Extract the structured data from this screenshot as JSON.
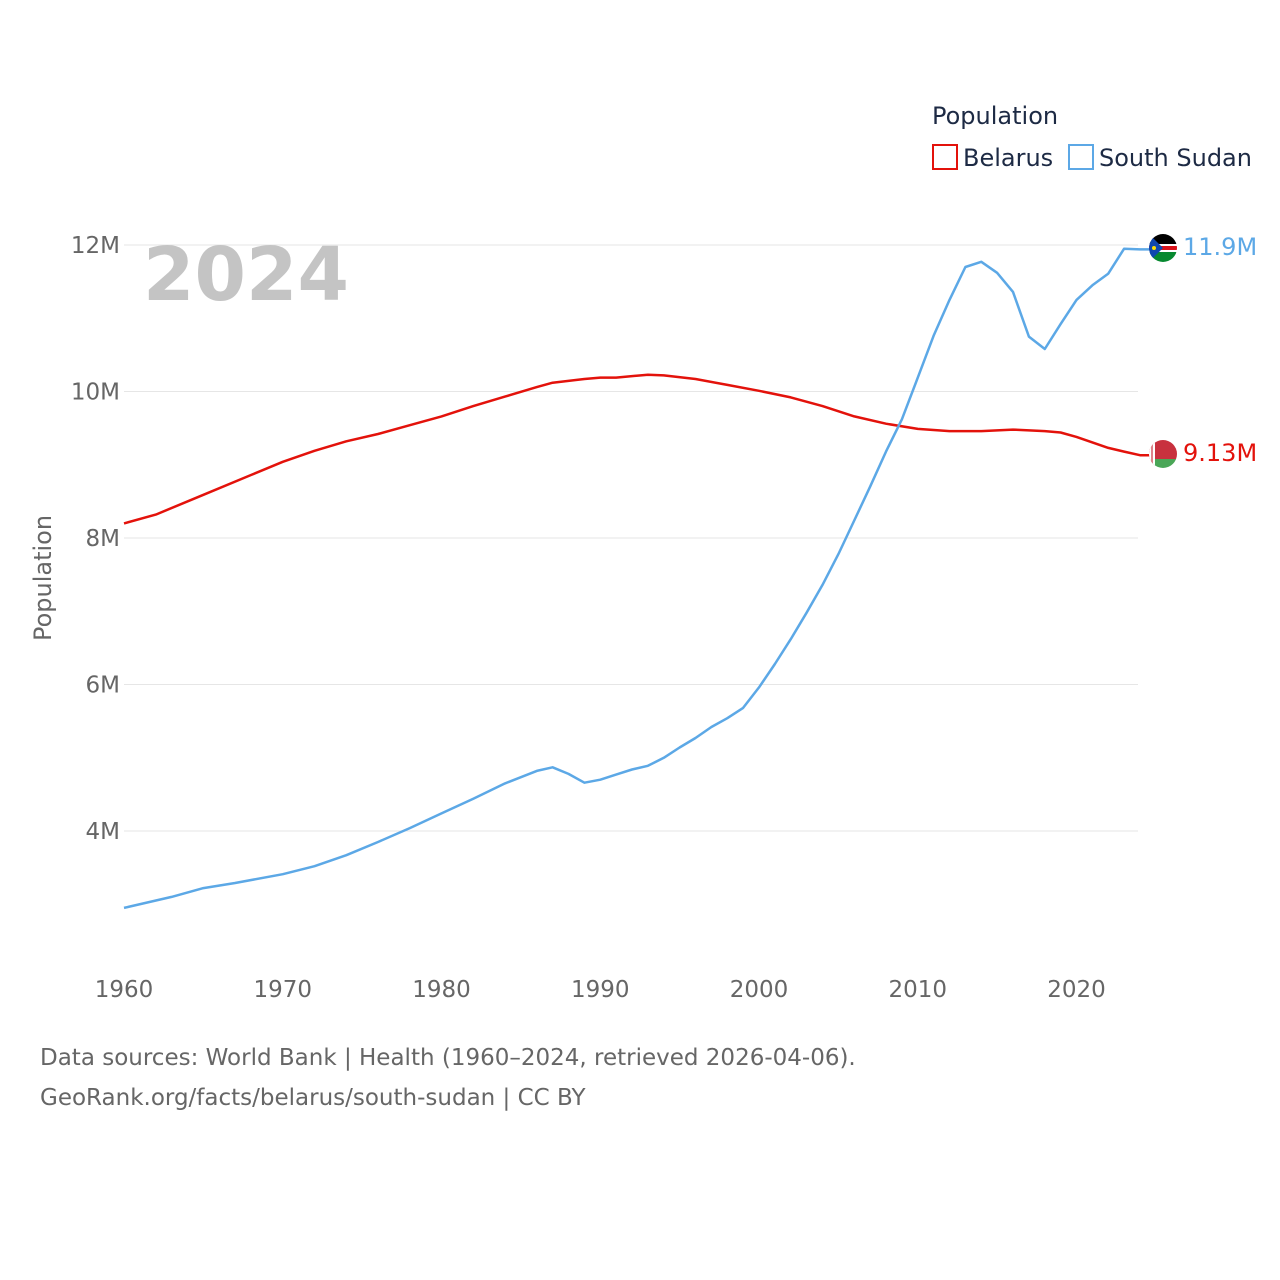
{
  "chart_data": {
    "type": "line",
    "title": "Population",
    "year_label": "2024",
    "ylabel": "Population",
    "xlim": [
      1960,
      2024
    ],
    "ylim": [
      2300000,
      12300000
    ],
    "x_ticks": [
      1960,
      1970,
      1980,
      1990,
      2000,
      2010,
      2020
    ],
    "x_tick_labels": [
      "1960",
      "1970",
      "1980",
      "1990",
      "2000",
      "2010",
      "2020"
    ],
    "y_ticks": [
      4000000,
      6000000,
      8000000,
      10000000,
      12000000
    ],
    "y_tick_labels": [
      "4M",
      "6M",
      "8M",
      "10M",
      "12M"
    ],
    "legend_title": "Population",
    "series": [
      {
        "name": "Belarus",
        "color": "#e3120b",
        "end_label": "9.13M",
        "flag_icon": "belarus-flag-icon",
        "points": [
          [
            1960,
            8200000
          ],
          [
            1962,
            8320000
          ],
          [
            1965,
            8590000
          ],
          [
            1968,
            8860000
          ],
          [
            1970,
            9040000
          ],
          [
            1972,
            9190000
          ],
          [
            1974,
            9320000
          ],
          [
            1976,
            9420000
          ],
          [
            1978,
            9540000
          ],
          [
            1980,
            9660000
          ],
          [
            1982,
            9800000
          ],
          [
            1984,
            9930000
          ],
          [
            1986,
            10060000
          ],
          [
            1987,
            10120000
          ],
          [
            1989,
            10170000
          ],
          [
            1990,
            10190000
          ],
          [
            1991,
            10190000
          ],
          [
            1993,
            10230000
          ],
          [
            1994,
            10220000
          ],
          [
            1996,
            10170000
          ],
          [
            1998,
            10090000
          ],
          [
            2000,
            10010000
          ],
          [
            2002,
            9920000
          ],
          [
            2004,
            9800000
          ],
          [
            2006,
            9660000
          ],
          [
            2008,
            9560000
          ],
          [
            2010,
            9490000
          ],
          [
            2012,
            9460000
          ],
          [
            2014,
            9460000
          ],
          [
            2016,
            9480000
          ],
          [
            2018,
            9460000
          ],
          [
            2019,
            9440000
          ],
          [
            2020,
            9380000
          ],
          [
            2022,
            9230000
          ],
          [
            2023,
            9180000
          ],
          [
            2024,
            9130000
          ]
        ]
      },
      {
        "name": "South Sudan",
        "color": "#5ca8e6",
        "end_label": "11.9M",
        "flag_icon": "south-sudan-flag-icon",
        "points": [
          [
            1960,
            2950000
          ],
          [
            1963,
            3100000
          ],
          [
            1965,
            3220000
          ],
          [
            1967,
            3290000
          ],
          [
            1970,
            3410000
          ],
          [
            1972,
            3520000
          ],
          [
            1974,
            3670000
          ],
          [
            1976,
            3850000
          ],
          [
            1978,
            4040000
          ],
          [
            1980,
            4240000
          ],
          [
            1982,
            4440000
          ],
          [
            1984,
            4650000
          ],
          [
            1986,
            4820000
          ],
          [
            1987,
            4870000
          ],
          [
            1988,
            4780000
          ],
          [
            1989,
            4660000
          ],
          [
            1990,
            4700000
          ],
          [
            1991,
            4770000
          ],
          [
            1992,
            4840000
          ],
          [
            1993,
            4890000
          ],
          [
            1994,
            5000000
          ],
          [
            1995,
            5140000
          ],
          [
            1996,
            5270000
          ],
          [
            1997,
            5420000
          ],
          [
            1998,
            5540000
          ],
          [
            1999,
            5680000
          ],
          [
            2000,
            5960000
          ],
          [
            2001,
            6280000
          ],
          [
            2002,
            6620000
          ],
          [
            2003,
            6980000
          ],
          [
            2004,
            7360000
          ],
          [
            2005,
            7780000
          ],
          [
            2006,
            8240000
          ],
          [
            2007,
            8700000
          ],
          [
            2008,
            9180000
          ],
          [
            2009,
            9620000
          ],
          [
            2010,
            10190000
          ],
          [
            2011,
            10760000
          ],
          [
            2012,
            11250000
          ],
          [
            2013,
            11700000
          ],
          [
            2014,
            11770000
          ],
          [
            2015,
            11620000
          ],
          [
            2016,
            11360000
          ],
          [
            2017,
            10750000
          ],
          [
            2018,
            10580000
          ],
          [
            2019,
            10920000
          ],
          [
            2020,
            11250000
          ],
          [
            2021,
            11450000
          ],
          [
            2022,
            11610000
          ],
          [
            2023,
            11950000
          ],
          [
            2024,
            11940000
          ]
        ]
      }
    ]
  },
  "footer": {
    "line1": "Data sources: World Bank | Health (1960–2024, retrieved 2026-04-06).",
    "line2": "GeoRank.org/facts/belarus/south-sudan | CC BY"
  }
}
